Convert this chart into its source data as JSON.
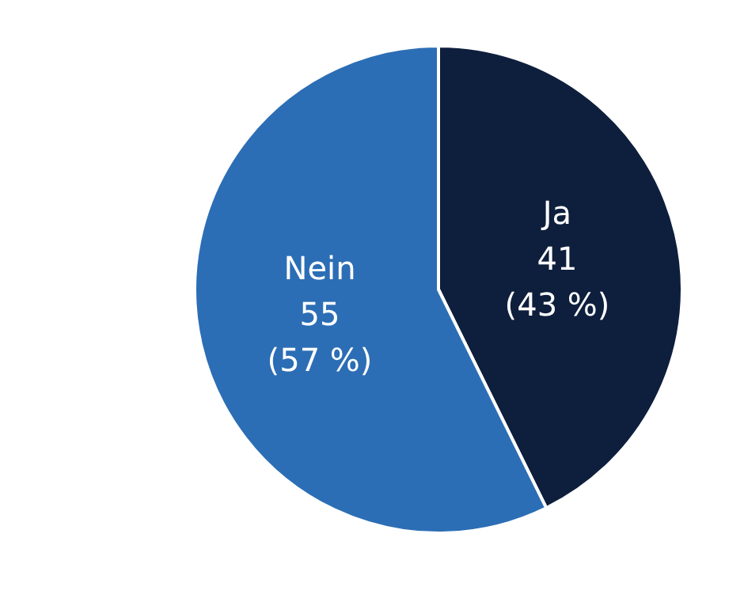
{
  "chart_data": {
    "type": "pie",
    "categories": [
      "Ja",
      "Nein"
    ],
    "values": [
      41,
      55
    ],
    "colors": [
      "#0e1f3d",
      "#2c6eb5"
    ],
    "value_labels": [
      "41 (43 %)",
      "55 (57 %)"
    ],
    "legend": false
  }
}
